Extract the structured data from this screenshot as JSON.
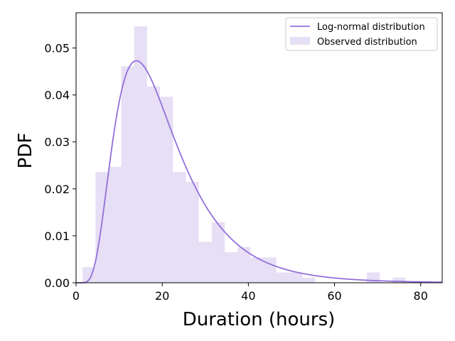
{
  "chart_data": {
    "type": "bar",
    "title": "",
    "xlabel": "Duration (hours)",
    "ylabel": "PDF",
    "xlim": [
      0,
      85
    ],
    "ylim": [
      0,
      0.0575
    ],
    "xticks": [
      0,
      20,
      40,
      60,
      80
    ],
    "yticks": [
      0.0,
      0.01,
      0.02,
      0.03,
      0.04,
      0.05
    ],
    "ytick_labels": [
      "0.00",
      "0.01",
      "0.02",
      "0.03",
      "0.04",
      "0.05"
    ],
    "grid": false,
    "legend_position": "top-right",
    "histogram": {
      "name": "Observed distribution",
      "color": "#e6dff5",
      "bin_edges": [
        1.5,
        4.5,
        7.5,
        10.5,
        13.5,
        16.5,
        19.5,
        22.5,
        25.5,
        28.5,
        31.5,
        34.5,
        37.5,
        40.5,
        43.5,
        46.5,
        49.5,
        52.5,
        55.5,
        58.5,
        61.5,
        64.5,
        67.5,
        70.5,
        73.5,
        76.5
      ],
      "densities": [
        0.0033,
        0.0236,
        0.0247,
        0.0461,
        0.0546,
        0.0418,
        0.0396,
        0.0236,
        0.0215,
        0.0087,
        0.0129,
        0.0065,
        0.0076,
        0.0054,
        0.0054,
        0.0022,
        0.0022,
        0.0011,
        0.0,
        0.0,
        0.0,
        0.0,
        0.0022,
        0.0,
        0.0011
      ]
    },
    "fit": {
      "name": "Log-normal distribution",
      "color": "#9370db",
      "mu": 2.915,
      "sigma": 0.525
    }
  }
}
